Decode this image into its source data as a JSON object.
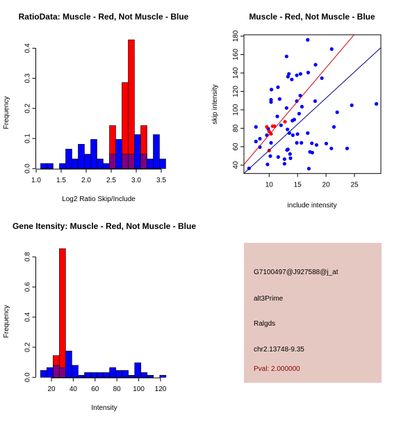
{
  "colors": {
    "red": "#ff0000",
    "blue": "#0000ff",
    "overlap": "#800080",
    "info_bg": "#e6c8c2",
    "pval": "#8b0000"
  },
  "chart_data": [
    {
      "type": "bar",
      "title": "RatioData: Muscle - Red, Not Muscle - Blue",
      "xlabel": "Log2 Ratio Skip/Include",
      "ylabel": "Frequency",
      "xlim": [
        1.0,
        3.6
      ],
      "ylim": [
        0,
        0.43
      ],
      "xticks": [
        "1.0",
        "1.5",
        "2.0",
        "2.5",
        "3.0",
        "3.5"
      ],
      "yticks": [
        "0.0",
        "0.1",
        "0.2",
        "0.3",
        "0.4"
      ],
      "bin_start": 1.09,
      "bin_width": 0.125,
      "series": [
        {
          "name": "Not Muscle",
          "color": "blue",
          "values": [
            0.017,
            0.017,
            0,
            0.017,
            0.065,
            0.032,
            0.081,
            0.048,
            0.097,
            0.032,
            0.017,
            0.048,
            0.097,
            0.048,
            0.048,
            0.113,
            0.048,
            0.032,
            0.113,
            0.032
          ]
        },
        {
          "name": "Muscle",
          "color": "red",
          "values": [
            0,
            0,
            0,
            0,
            0,
            0,
            0,
            0,
            0,
            0,
            0,
            0.143,
            0,
            0.286,
            0.428,
            0,
            0.143,
            0,
            0,
            0
          ]
        }
      ]
    },
    {
      "type": "scatter",
      "title": "Muscle - Red, Not Muscle - Blue",
      "xlabel": "include intensity",
      "ylabel": "skip intensity",
      "xlim": [
        5.6,
        29.6
      ],
      "ylim": [
        31,
        181.5
      ],
      "xticks": [
        "10",
        "15",
        "20",
        "25"
      ],
      "yticks": [
        "40",
        "60",
        "80",
        "100",
        "120",
        "140",
        "160",
        "180"
      ],
      "lines": [
        {
          "name": "muscle-fit",
          "color": "red",
          "slope": 7.27,
          "intercept": 0.2
        },
        {
          "name": "non-muscle-fit",
          "color": "blue",
          "slope": 5.67,
          "intercept": -0.6
        }
      ],
      "series": [
        {
          "name": "Not Muscle",
          "color": "blue",
          "points": [
            [
              16.78,
              176
            ],
            [
              21.0,
              166
            ],
            [
              13.06,
              158
            ],
            [
              18.16,
              149
            ],
            [
              16.86,
              140.5
            ],
            [
              13.47,
              139
            ],
            [
              15.51,
              139
            ],
            [
              14.86,
              137.5
            ],
            [
              13.3,
              136
            ],
            [
              19.27,
              134.4
            ],
            [
              13.98,
              133
            ],
            [
              10.4,
              122
            ],
            [
              11.55,
              124.6
            ],
            [
              10.33,
              111
            ],
            [
              10.33,
              108.5
            ],
            [
              11.84,
              111.8
            ],
            [
              15.47,
              115.5
            ],
            [
              18.08,
              109.5
            ],
            [
              14.86,
              109.5
            ],
            [
              15.76,
              103.5
            ],
            [
              13.06,
              102
            ],
            [
              21.96,
              97.4
            ],
            [
              24.53,
              105
            ],
            [
              28.86,
              106.5
            ],
            [
              11.43,
              92.9
            ],
            [
              15.27,
              95.9
            ],
            [
              14.41,
              89.4
            ],
            [
              14.08,
              88.3
            ],
            [
              12.08,
              83.3
            ],
            [
              7.67,
              81.5
            ],
            [
              9.84,
              79.3
            ],
            [
              13.22,
              78.8
            ],
            [
              13.55,
              74.8
            ],
            [
              14.16,
              72.5
            ],
            [
              9.59,
              72.5
            ],
            [
              14.98,
              73.7
            ],
            [
              16.78,
              74.8
            ],
            [
              21.39,
              81.5
            ],
            [
              8.37,
              68.7
            ],
            [
              7.67,
              65.7
            ],
            [
              10.33,
              64.2
            ],
            [
              14.86,
              64.2
            ],
            [
              15.67,
              64.2
            ],
            [
              17.51,
              63.7
            ],
            [
              18.33,
              61.9
            ],
            [
              20.04,
              63.4
            ],
            [
              20.94,
              58.1
            ],
            [
              23.71,
              58.1
            ],
            [
              8.37,
              59.6
            ],
            [
              13.3,
              57.1
            ],
            [
              13.14,
              56.4
            ],
            [
              13.67,
              52.1
            ],
            [
              10.2,
              49.8
            ],
            [
              11.59,
              48.8
            ],
            [
              12.69,
              46.5
            ],
            [
              13.75,
              47.5
            ],
            [
              17.18,
              54.4
            ],
            [
              17.59,
              53.6
            ],
            [
              12.69,
              41.5
            ],
            [
              9.71,
              40.8
            ],
            [
              16.98,
              36.2
            ],
            [
              6.45,
              36.5
            ]
          ]
        },
        {
          "name": "Muscle",
          "color": "red",
          "points": [
            [
              9.59,
              81.5
            ],
            [
              10.0,
              76.5
            ],
            [
              10.33,
              74
            ],
            [
              10.61,
              82.3
            ],
            [
              10.94,
              82.3
            ],
            [
              12.78,
              87.1
            ],
            [
              10.0,
              55.9
            ]
          ]
        }
      ]
    },
    {
      "type": "bar",
      "title": "Gene Itensity: Muscle - Red, Not Muscle - Blue",
      "xlabel": "Intensity",
      "ylabel": "Frequency",
      "xlim": [
        10,
        130
      ],
      "ylim": [
        0,
        0.87
      ],
      "xticks": [
        "20",
        "40",
        "60",
        "80",
        "100",
        "120"
      ],
      "yticks": [
        "0.0",
        "0.2",
        "0.4",
        "0.6",
        "0.8"
      ],
      "bin_start": 10,
      "bin_width": 5.75,
      "series": [
        {
          "name": "Not Muscle",
          "color": "blue",
          "values": [
            0.046,
            0.065,
            0.08,
            0.065,
            0.175,
            0.08,
            0.014,
            0.032,
            0.032,
            0.032,
            0.032,
            0.065,
            0.046,
            0.046,
            0.014,
            0.097,
            0.032,
            0.014,
            0,
            0.014
          ]
        },
        {
          "name": "Muscle",
          "color": "red",
          "values": [
            0,
            0,
            0.145,
            0.854,
            0,
            0,
            0,
            0,
            0,
            0,
            0,
            0,
            0,
            0,
            0,
            0,
            0,
            0,
            0,
            0
          ]
        }
      ]
    }
  ],
  "info": {
    "probe": "G7100497@J927588@j_at",
    "event": "alt3Prime",
    "gene": "Ralgds",
    "location": "chr2.13748-9.35",
    "pval": "Pval: 2.000000"
  }
}
